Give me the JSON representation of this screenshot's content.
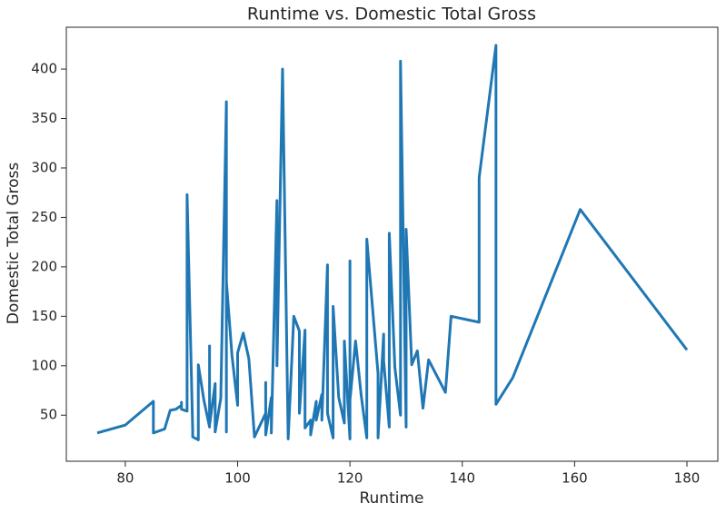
{
  "chart_data": {
    "type": "line",
    "title": "Runtime vs. Domestic Total Gross",
    "x_label": "Runtime",
    "y_label": "Domestic Total Gross",
    "x": [
      75,
      80,
      85,
      85,
      87,
      88,
      89,
      90,
      90,
      90,
      91,
      91,
      92,
      92,
      93,
      93,
      94,
      95,
      95,
      95,
      96,
      96,
      97,
      98,
      98,
      98,
      99,
      100,
      100,
      101,
      102,
      103,
      105,
      105,
      105,
      106,
      106,
      107,
      107,
      108,
      109,
      110,
      111,
      111,
      112,
      112,
      113,
      113,
      114,
      114,
      115,
      115,
      116,
      116,
      117,
      117,
      118,
      119,
      119,
      120,
      120,
      120,
      121,
      122,
      123,
      123,
      125,
      125,
      126,
      126,
      127,
      127,
      128,
      129,
      129,
      130,
      130,
      131,
      132,
      133,
      134,
      137,
      138,
      143,
      143,
      146,
      146,
      149,
      161,
      180
    ],
    "series": [
      {
        "name": "Domestic Total Gross",
        "color": "#1f77b4",
        "values": [
          32,
          40,
          64,
          32,
          36,
          55,
          56,
          60,
          63,
          56,
          54,
          273,
          35,
          28,
          25,
          101,
          65,
          38,
          120,
          40,
          82,
          33,
          67,
          367,
          33,
          185,
          110,
          60,
          113,
          133,
          107,
          28,
          52,
          83,
          30,
          68,
          32,
          267,
          100,
          400,
          26,
          150,
          135,
          52,
          136,
          37,
          45,
          30,
          64,
          45,
          71,
          45,
          202,
          52,
          27,
          160,
          68,
          42,
          125,
          26,
          206,
          65,
          125,
          70,
          27,
          228,
          92,
          27,
          132,
          105,
          38,
          234,
          98,
          50,
          408,
          38,
          238,
          101,
          115,
          57,
          106,
          73,
          150,
          144,
          290,
          424,
          61,
          88,
          258,
          116
        ]
      }
    ],
    "xlim": [
      69.5,
      185.5
    ],
    "ylim": [
      3.4,
      442.3
    ],
    "xticks": [
      80,
      100,
      120,
      140,
      160,
      180
    ],
    "yticks": [
      50,
      100,
      150,
      200,
      250,
      300,
      350,
      400
    ]
  }
}
